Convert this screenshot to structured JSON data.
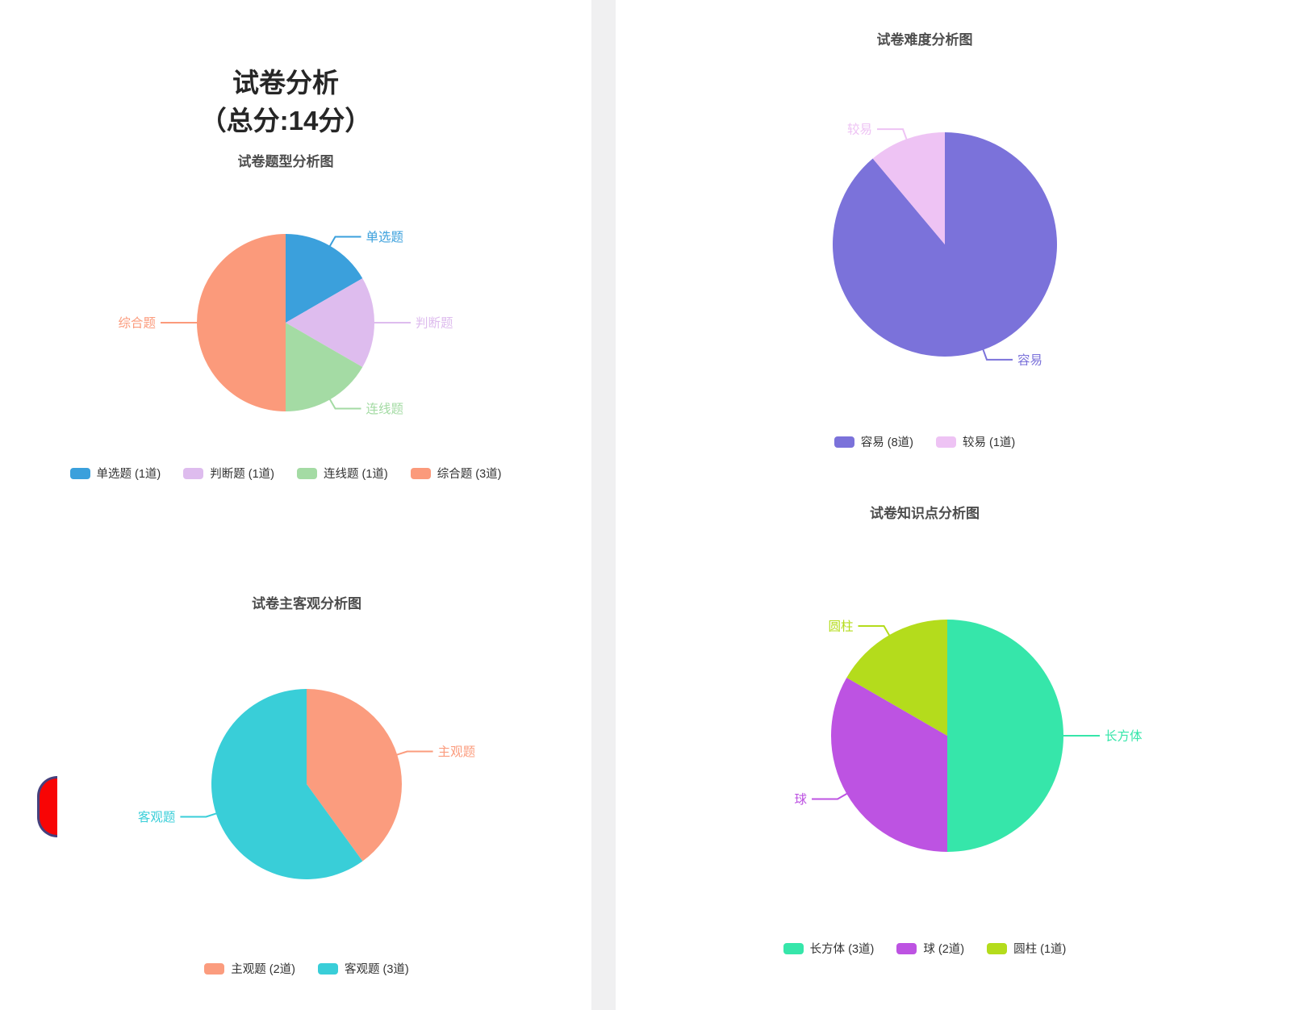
{
  "page": {
    "main_title_line1": "试卷分析",
    "main_title_line2": "（总分:14分）"
  },
  "colors": {
    "divider": "#f0f0f1",
    "panel_bg": "#ffffff",
    "chart_title_text": "#4d4d4d",
    "legend_text": "#333333",
    "main_title_text": "#262626",
    "floating_bubble_fill": "#f80505",
    "floating_bubble_border": "#46407c"
  },
  "chart_data": [
    {
      "id": "question_type",
      "type": "pie",
      "title": "试卷题型分析图",
      "legend_position": "bottom",
      "start_angle_deg": 0,
      "unit": "道",
      "series": [
        {
          "label": "单选题",
          "count": 1,
          "legend": "单选题 (1道)",
          "color": "#3ba0dc"
        },
        {
          "label": "判断题",
          "count": 1,
          "legend": "判断题 (1道)",
          "color": "#debcee"
        },
        {
          "label": "连线题",
          "count": 1,
          "legend": "连线题 (1道)",
          "color": "#a4dba4"
        },
        {
          "label": "综合题",
          "count": 3,
          "legend": "综合题 (3道)",
          "color": "#fb9a7b"
        }
      ]
    },
    {
      "id": "difficulty",
      "type": "pie",
      "title": "试卷难度分析图",
      "legend_position": "bottom",
      "start_angle_deg": 0,
      "unit": "道",
      "series": [
        {
          "label": "容易",
          "count": 8,
          "legend": "容易 (8道)",
          "color": "#7b72da"
        },
        {
          "label": "较易",
          "count": 1,
          "legend": "较易 (1道)",
          "color": "#eec3f4"
        }
      ]
    },
    {
      "id": "subjective_objective",
      "type": "pie",
      "title": "试卷主客观分析图",
      "legend_position": "bottom",
      "start_angle_deg": 0,
      "unit": "道",
      "series": [
        {
          "label": "主观题",
          "count": 2,
          "legend": "主观题 (2道)",
          "color": "#fb9c7e"
        },
        {
          "label": "客观题",
          "count": 3,
          "legend": "客观题 (3道)",
          "color": "#39ced8"
        }
      ]
    },
    {
      "id": "knowledge_points",
      "type": "pie",
      "title": "试卷知识点分析图",
      "legend_position": "bottom",
      "start_angle_deg": 0,
      "unit": "道",
      "series": [
        {
          "label": "长方体",
          "count": 3,
          "legend": "长方体 (3道)",
          "color": "#36e6aa"
        },
        {
          "label": "球",
          "count": 2,
          "legend": "球 (2道)",
          "color": "#bd53e2"
        },
        {
          "label": "圆柱",
          "count": 1,
          "legend": "圆柱 (1道)",
          "color": "#b4dc1c"
        }
      ]
    }
  ]
}
